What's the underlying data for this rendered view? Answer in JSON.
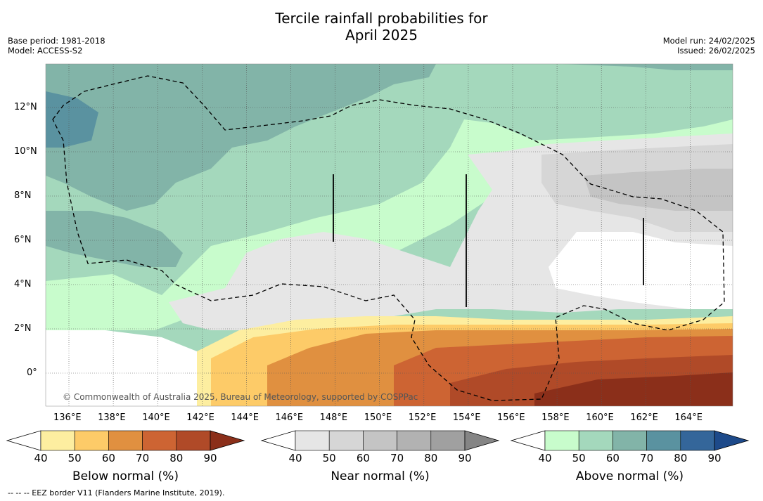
{
  "title_line1": "Tercile rainfall probabilities for",
  "title_line2": "April 2025",
  "base_period": "Base period: 1981-2018",
  "model": "Model: ACCESS-S2",
  "model_run": "Model run: 24/02/2025",
  "issued": "Issued: 26/02/2025",
  "copyright": "© Commonwealth of Australia 2025, Bureau of Meteorology, supported by COSPPac",
  "footer": "--  --  -- EEZ border V11 (Flanders Marine Institute, 2019).",
  "map": {
    "lon_labels": [
      "136°E",
      "138°E",
      "140°E",
      "142°E",
      "144°E",
      "146°E",
      "148°E",
      "150°E",
      "152°E",
      "154°E",
      "156°E",
      "158°E",
      "160°E",
      "162°E",
      "164°E"
    ],
    "lat_labels": [
      "12°N",
      "10°N",
      "8°N",
      "6°N",
      "4°N",
      "2°N",
      "0°"
    ]
  },
  "colorbars": [
    {
      "label": "Below normal (%)",
      "ticks": [
        "40",
        "50",
        "60",
        "70",
        "80",
        "90"
      ],
      "colors": [
        "#ffffff",
        "#fdeea0",
        "#fdcb68",
        "#e09040",
        "#cd6433",
        "#b04a28",
        "#8b2f1a"
      ]
    },
    {
      "label": "Near normal (%)",
      "ticks": [
        "40",
        "50",
        "60",
        "70",
        "80",
        "90"
      ],
      "colors": [
        "#ffffff",
        "#e6e6e6",
        "#d6d6d6",
        "#c4c4c4",
        "#b2b2b2",
        "#a0a0a0",
        "#858585"
      ]
    },
    {
      "label": "Above normal (%)",
      "ticks": [
        "40",
        "50",
        "60",
        "70",
        "80",
        "90"
      ],
      "colors": [
        "#ffffff",
        "#c8fccc",
        "#a4d8bc",
        "#82b4a8",
        "#5a92a0",
        "#34669a",
        "#1d4a8a"
      ]
    }
  ]
}
